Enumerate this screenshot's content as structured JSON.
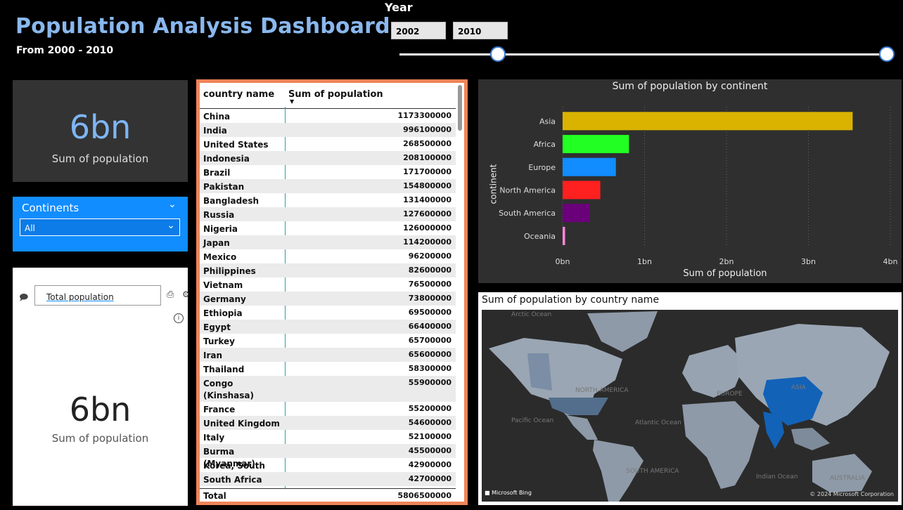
{
  "header": {
    "title": "Population Analysis Dashboard",
    "subtitle": "From 2000 - 2010"
  },
  "year_filter": {
    "label": "Year",
    "start": "2002",
    "end": "2010",
    "range_position": {
      "start_fraction": 0.2,
      "end_fraction": 1.0
    }
  },
  "card": {
    "value": "6bn",
    "label": "Sum of population"
  },
  "continents_slicer": {
    "title": "Continents",
    "selected": "All"
  },
  "qa_visual": {
    "query": "Total population",
    "value": "6bn",
    "label": "Sum of population"
  },
  "table": {
    "columns": [
      "country name",
      "Sum of population"
    ],
    "rows": [
      [
        "China",
        "1173300000"
      ],
      [
        "India",
        "996100000"
      ],
      [
        "United States",
        "268500000"
      ],
      [
        "Indonesia",
        "208100000"
      ],
      [
        "Brazil",
        "171700000"
      ],
      [
        "Pakistan",
        "154800000"
      ],
      [
        "Bangladesh",
        "131400000"
      ],
      [
        "Russia",
        "127600000"
      ],
      [
        "Nigeria",
        "126000000"
      ],
      [
        "Japan",
        "114200000"
      ],
      [
        "Mexico",
        "96200000"
      ],
      [
        "Philippines",
        "82600000"
      ],
      [
        "Vietnam",
        "76500000"
      ],
      [
        "Germany",
        "73800000"
      ],
      [
        "Ethiopia",
        "69500000"
      ],
      [
        "Egypt",
        "66400000"
      ],
      [
        "Turkey",
        "65700000"
      ],
      [
        "Iran",
        "65600000"
      ],
      [
        "Thailand",
        "58300000"
      ],
      [
        "Congo (Kinshasa)",
        "55900000"
      ],
      [
        "France",
        "55200000"
      ],
      [
        "United Kingdom",
        "54600000"
      ],
      [
        "Italy",
        "52100000"
      ],
      [
        "Burma (Myanmar)",
        "45500000"
      ],
      [
        "Korea, South",
        "42900000"
      ],
      [
        "South Africa",
        "42700000"
      ]
    ],
    "total_label": "Total",
    "total_value": "5806500000"
  },
  "chart_data": {
    "type": "bar",
    "orientation": "horizontal",
    "title": "Sum of population by continent",
    "xlabel": "Sum of population",
    "ylabel": "continent",
    "categories": [
      "Asia",
      "Africa",
      "Europe",
      "North America",
      "South America",
      "Oceania"
    ],
    "values": [
      3.54,
      0.81,
      0.65,
      0.46,
      0.33,
      0.03
    ],
    "value_unit": "bn",
    "xlim": [
      0,
      4
    ],
    "xticks": [
      "0bn",
      "1bn",
      "2bn",
      "3bn",
      "4bn"
    ],
    "colors": [
      "#d9b300",
      "#22ff22",
      "#118dff",
      "#ff2020",
      "#6b007b",
      "#ff88dd"
    ],
    "grid": "vertical dotted"
  },
  "map": {
    "title": "Sum of population by country name",
    "labels": [
      "Arctic Ocean",
      "NORTH AMERICA",
      "EUROPE",
      "ASIA",
      "Pacific Ocean",
      "Atlantic Ocean",
      "SOUTH AMERICA",
      "Indian Ocean",
      "AUSTRALIA"
    ],
    "attribution": "Microsoft Bing",
    "copyright": "© 2024 Microsoft Corporation",
    "colors": {
      "land": "#8e9aa8",
      "highlight": "#1262b8",
      "water": "#2b2b2b"
    }
  }
}
